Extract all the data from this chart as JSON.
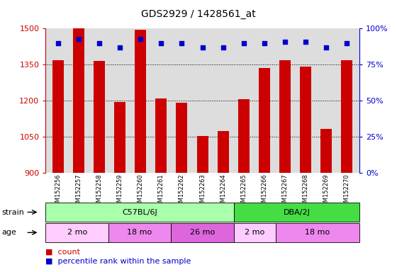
{
  "title": "GDS2929 / 1428561_at",
  "samples": [
    "GSM152256",
    "GSM152257",
    "GSM152258",
    "GSM152259",
    "GSM152260",
    "GSM152261",
    "GSM152262",
    "GSM152263",
    "GSM152264",
    "GSM152265",
    "GSM152266",
    "GSM152267",
    "GSM152268",
    "GSM152269",
    "GSM152270"
  ],
  "counts": [
    1368,
    1500,
    1365,
    1193,
    1495,
    1208,
    1190,
    1053,
    1072,
    1207,
    1337,
    1368,
    1343,
    1082,
    1368
  ],
  "percentile_ranks": [
    90,
    93,
    90,
    87,
    93,
    90,
    90,
    87,
    87,
    90,
    90,
    91,
    91,
    87,
    90
  ],
  "ylim_left": [
    900,
    1500
  ],
  "ylim_right": [
    0,
    100
  ],
  "yticks_left": [
    900,
    1050,
    1200,
    1350,
    1500
  ],
  "yticks_right": [
    0,
    25,
    50,
    75,
    100
  ],
  "ytick_right_labels": [
    "0%",
    "25%",
    "50%",
    "75%",
    "100%"
  ],
  "bar_color": "#cc0000",
  "dot_color": "#0000cc",
  "strain_groups": [
    {
      "label": "C57BL/6J",
      "start": 0,
      "end": 9,
      "color": "#aaffaa"
    },
    {
      "label": "DBA/2J",
      "start": 9,
      "end": 15,
      "color": "#44dd44"
    }
  ],
  "age_groups": [
    {
      "label": "2 mo",
      "start": 0,
      "end": 3,
      "color": "#ffccff"
    },
    {
      "label": "18 mo",
      "start": 3,
      "end": 6,
      "color": "#ee88ee"
    },
    {
      "label": "26 mo",
      "start": 6,
      "end": 9,
      "color": "#dd66dd"
    },
    {
      "label": "2 mo",
      "start": 9,
      "end": 11,
      "color": "#ffccff"
    },
    {
      "label": "18 mo",
      "start": 11,
      "end": 15,
      "color": "#ee88ee"
    }
  ],
  "grid_dotted_at": [
    1050,
    1200,
    1350
  ],
  "background_color": "#ffffff",
  "plot_bg_color": "#dddddd"
}
